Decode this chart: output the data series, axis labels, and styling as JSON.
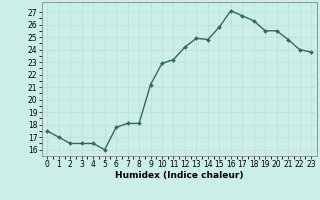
{
  "x": [
    0,
    1,
    2,
    3,
    4,
    5,
    6,
    7,
    8,
    9,
    10,
    11,
    12,
    13,
    14,
    15,
    16,
    17,
    18,
    19,
    20,
    21,
    22,
    23
  ],
  "y": [
    17.5,
    17.0,
    16.5,
    16.5,
    16.5,
    16.0,
    17.8,
    18.1,
    18.1,
    21.2,
    22.9,
    23.2,
    24.2,
    24.9,
    24.8,
    25.8,
    27.1,
    26.7,
    26.3,
    25.5,
    25.5,
    24.8,
    24.0,
    23.8
  ],
  "line_color": "#2e6b5e",
  "marker": "D",
  "marker_size": 2.0,
  "bg_color": "#cceee8",
  "grid_major_color": "#b8ddd8",
  "grid_minor_color": "#d4eeea",
  "xlabel": "Humidex (Indice chaleur)",
  "ylim": [
    15.5,
    27.8
  ],
  "yticks": [
    16,
    17,
    18,
    19,
    20,
    21,
    22,
    23,
    24,
    25,
    26,
    27
  ],
  "xlim": [
    -0.5,
    23.5
  ],
  "xticks": [
    0,
    1,
    2,
    3,
    4,
    5,
    6,
    7,
    8,
    9,
    10,
    11,
    12,
    13,
    14,
    15,
    16,
    17,
    18,
    19,
    20,
    21,
    22,
    23
  ],
  "tick_fontsize": 5.5,
  "xlabel_fontsize": 6.5,
  "line_width": 1.0
}
